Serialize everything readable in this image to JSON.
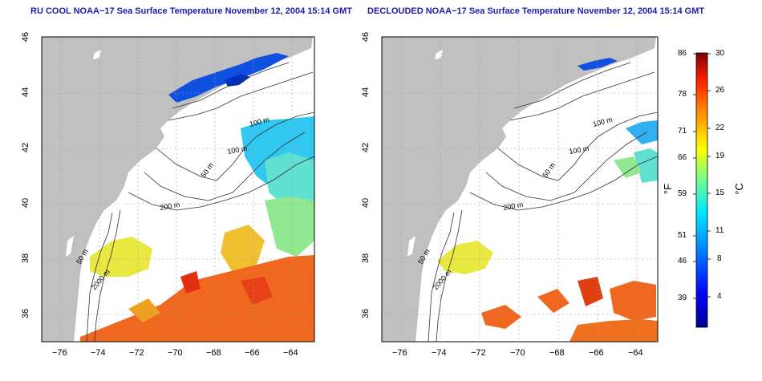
{
  "panels": [
    {
      "title": "RU COOL NOAA−17 Sea Surface Temperature November 12, 2004 15:14 GMT"
    },
    {
      "title": "DECLOUDED NOAA−17 Sea Surface Temperature November 12, 2004 15:14 GMT"
    }
  ],
  "axes": {
    "x_ticks": [
      "−76",
      "−74",
      "−72",
      "−70",
      "−68",
      "−66",
      "−64"
    ],
    "y_ticks": [
      "36",
      "38",
      "40",
      "42",
      "44",
      "46"
    ]
  },
  "contours": [
    "100 m",
    "100 m",
    "50 m",
    "200 m",
    "50 m",
    "2000 m"
  ],
  "colorbar": {
    "fahrenheit_ticks": [
      "86",
      "78",
      "71",
      "66",
      "59",
      "51",
      "46",
      "39"
    ],
    "celsius_ticks": [
      "30",
      "26",
      "22",
      "19",
      "15",
      "11",
      "8",
      "4"
    ],
    "unit_f": "°F",
    "unit_c": "°C"
  },
  "colors": {
    "land": "#c0c0c0",
    "title": "#1b1bb0",
    "colormap": [
      "#00008f",
      "#0000ff",
      "#0070ff",
      "#00d8ff",
      "#40ffbf",
      "#bfff40",
      "#ffd800",
      "#ff7000",
      "#e00000",
      "#800000"
    ]
  }
}
